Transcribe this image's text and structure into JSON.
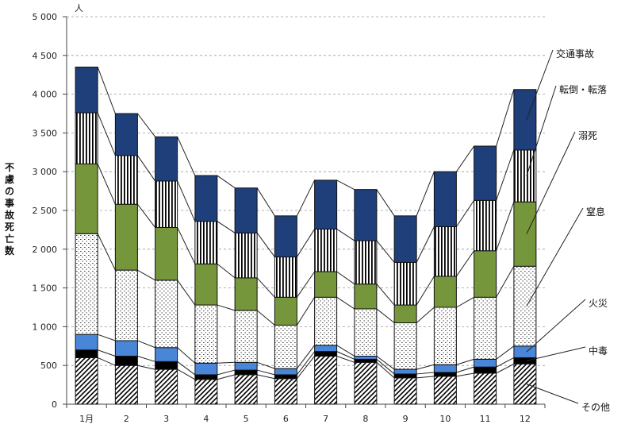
{
  "chart_data": {
    "type": "bar",
    "stacked": true,
    "title": "",
    "xlabel": "",
    "ylabel": "不慮の事故死亡数",
    "y_unit": "人",
    "ylim": [
      0,
      5000
    ],
    "y_ticks": [
      0,
      500,
      1000,
      1500,
      2000,
      2500,
      3000,
      3500,
      4000,
      4500,
      5000
    ],
    "y_tick_labels": [
      "0",
      "500",
      "1 000",
      "1 500",
      "2 000",
      "2 500",
      "3 000",
      "3 500",
      "4 000",
      "4 500",
      "5 000"
    ],
    "grid": true,
    "legend_placement": "right",
    "categories": [
      "1月",
      "2",
      "3",
      "4",
      "5",
      "6",
      "7",
      "8",
      "9",
      "10",
      "11",
      "12"
    ],
    "series": [
      {
        "name": "その他",
        "pattern": "diagonal-hatch",
        "color": "#000000",
        "values": [
          600,
          500,
          450,
          320,
          380,
          330,
          620,
          540,
          340,
          360,
          400,
          520
        ]
      },
      {
        "name": "中毒",
        "pattern": "solid",
        "color": "#000000",
        "values": [
          100,
          120,
          100,
          60,
          60,
          50,
          60,
          40,
          50,
          50,
          80,
          80
        ]
      },
      {
        "name": "火災",
        "pattern": "solid",
        "color": "#4a86d8",
        "values": [
          200,
          200,
          180,
          150,
          100,
          80,
          80,
          40,
          60,
          100,
          100,
          150
        ]
      },
      {
        "name": "窒息",
        "pattern": "dots",
        "color": "#ffffff",
        "values": [
          1300,
          910,
          870,
          750,
          670,
          560,
          620,
          610,
          600,
          740,
          800,
          1030
        ]
      },
      {
        "name": "溺死",
        "pattern": "solid",
        "color": "#76963c",
        "values": [
          900,
          850,
          680,
          530,
          420,
          360,
          330,
          320,
          230,
          400,
          600,
          830
        ]
      },
      {
        "name": "転倒・転落",
        "pattern": "vertical-stripes",
        "color": "#000000",
        "values": [
          660,
          630,
          600,
          550,
          580,
          520,
          550,
          560,
          550,
          640,
          650,
          670
        ]
      },
      {
        "name": "交通事故",
        "pattern": "solid",
        "color": "#1f3f7a",
        "values": [
          590,
          540,
          570,
          590,
          580,
          530,
          630,
          660,
          600,
          710,
          700,
          780
        ]
      }
    ]
  }
}
